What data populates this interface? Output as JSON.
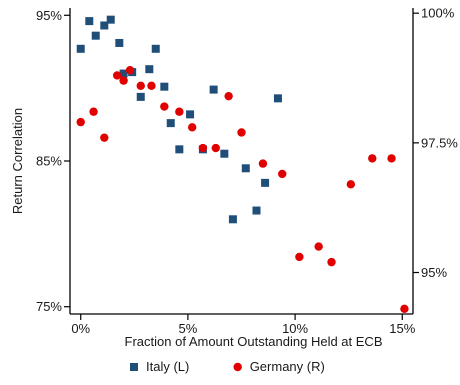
{
  "chart_data": {
    "type": "scatter",
    "title": "",
    "xlabel": "Fraction of Amount Outstanding Held at ECB",
    "ylabel_left": "Return Correlation",
    "ylabel_right": "",
    "xlim": [
      -0.5,
      15.5
    ],
    "x_ticks": [
      {
        "value": 0,
        "label": "0%"
      },
      {
        "value": 5,
        "label": "5%"
      },
      {
        "value": 10,
        "label": "10%"
      },
      {
        "value": 15,
        "label": "15%"
      }
    ],
    "ylim_left": [
      74.5,
      95.5
    ],
    "y_ticks_left": [
      {
        "value": 75,
        "label": "75%"
      },
      {
        "value": 85,
        "label": "85%"
      },
      {
        "value": 95,
        "label": "95%"
      }
    ],
    "ylim_right": [
      94.2,
      100.1
    ],
    "y_ticks_right": [
      {
        "value": 95,
        "label": "95%"
      },
      {
        "value": 97.5,
        "label": "97.5%"
      },
      {
        "value": 100,
        "label": "100%"
      }
    ],
    "grid": false,
    "legend_position": "bottom",
    "series": [
      {
        "name": "Italy (L)",
        "axis": "left",
        "marker": "square",
        "color": "#1f4e79",
        "points": [
          {
            "x": 0.0,
            "y": 92.7
          },
          {
            "x": 0.4,
            "y": 94.6
          },
          {
            "x": 0.7,
            "y": 93.6
          },
          {
            "x": 1.1,
            "y": 94.3
          },
          {
            "x": 1.4,
            "y": 94.7
          },
          {
            "x": 1.8,
            "y": 93.1
          },
          {
            "x": 2.0,
            "y": 91.0
          },
          {
            "x": 2.4,
            "y": 91.1
          },
          {
            "x": 2.8,
            "y": 89.4
          },
          {
            "x": 3.2,
            "y": 91.3
          },
          {
            "x": 3.5,
            "y": 92.7
          },
          {
            "x": 3.9,
            "y": 90.1
          },
          {
            "x": 4.2,
            "y": 87.6
          },
          {
            "x": 4.6,
            "y": 85.8
          },
          {
            "x": 5.1,
            "y": 88.2
          },
          {
            "x": 5.7,
            "y": 85.8
          },
          {
            "x": 6.2,
            "y": 89.9
          },
          {
            "x": 6.7,
            "y": 85.5
          },
          {
            "x": 7.1,
            "y": 81.0
          },
          {
            "x": 7.7,
            "y": 84.5
          },
          {
            "x": 8.2,
            "y": 81.6
          },
          {
            "x": 8.6,
            "y": 83.5
          },
          {
            "x": 9.2,
            "y": 89.3
          }
        ]
      },
      {
        "name": "Germany (R)",
        "axis": "right",
        "marker": "circle",
        "color": "#e00000",
        "points": [
          {
            "x": 0.0,
            "y": 97.9
          },
          {
            "x": 0.6,
            "y": 98.1
          },
          {
            "x": 1.1,
            "y": 97.6
          },
          {
            "x": 1.7,
            "y": 98.8
          },
          {
            "x": 2.0,
            "y": 98.7
          },
          {
            "x": 2.3,
            "y": 98.9
          },
          {
            "x": 2.8,
            "y": 98.6
          },
          {
            "x": 3.3,
            "y": 98.6
          },
          {
            "x": 3.9,
            "y": 98.2
          },
          {
            "x": 4.6,
            "y": 98.1
          },
          {
            "x": 5.2,
            "y": 97.8
          },
          {
            "x": 5.7,
            "y": 97.4
          },
          {
            "x": 6.3,
            "y": 97.4
          },
          {
            "x": 6.9,
            "y": 98.4
          },
          {
            "x": 7.5,
            "y": 97.7
          },
          {
            "x": 8.5,
            "y": 97.1
          },
          {
            "x": 9.4,
            "y": 96.9
          },
          {
            "x": 10.2,
            "y": 95.3
          },
          {
            "x": 11.1,
            "y": 95.5
          },
          {
            "x": 11.7,
            "y": 95.2
          },
          {
            "x": 12.6,
            "y": 96.7
          },
          {
            "x": 13.6,
            "y": 97.2
          },
          {
            "x": 14.5,
            "y": 97.2
          },
          {
            "x": 15.1,
            "y": 94.3
          }
        ]
      }
    ]
  }
}
